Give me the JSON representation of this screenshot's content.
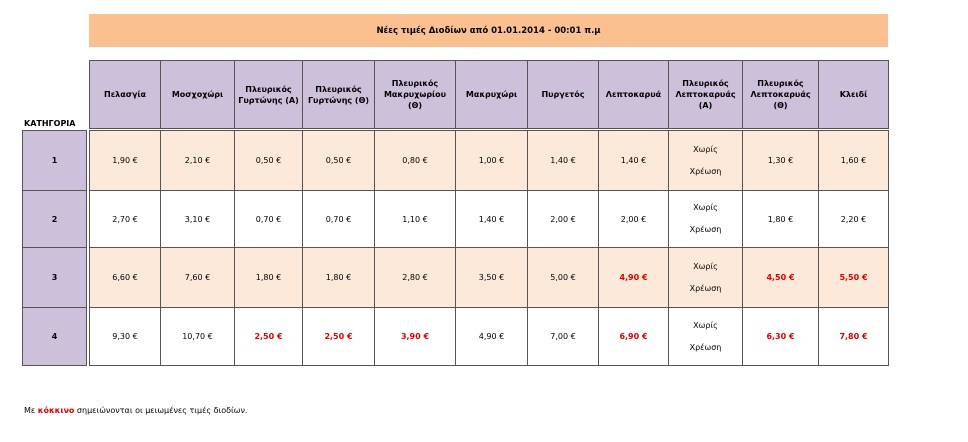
{
  "header": {
    "title": "Νέες τιμές Διοδίων από  01.01.2014 - 00:01 π.μ"
  },
  "highlight_color": "#e00000",
  "table": {
    "row_header_label": "ΚΑΤΗΓΟΡΙΑ",
    "columns": [
      "Πελασγία",
      "Μοσχοχώρι",
      "Πλευρικός Γυρτώνης (Α)",
      "Πλευρικός Γυρτώνης (Θ)",
      "Πλευρικός Μακρυχωρίου (Θ)",
      "Μακρυχώρι",
      "Πυργετός",
      "Λεπτοκαρυά",
      "Πλευρικός Λεπτοκαρυάς (Α)",
      "Πλευρικός Λεπτοκαρυάς (Θ)",
      "Κλειδί"
    ],
    "rows": [
      {
        "category": "1",
        "cells": [
          "1,90 €",
          "2,10 €",
          "0,50 €",
          "0,50 €",
          "0,80 €",
          "1,00 €",
          "1,40 €",
          "1,40 €",
          {
            "lines": [
              "Χωρίς",
              "Χρέωση"
            ]
          },
          "1,30 €",
          "1,60 €"
        ]
      },
      {
        "category": "2",
        "cells": [
          "2,70 €",
          "3,10 €",
          "0,70 €",
          "0,70 €",
          "1,10 €",
          "1,40 €",
          "2,00 €",
          "2,00 €",
          {
            "lines": [
              "Χωρίς",
              "Χρέωση"
            ]
          },
          "1,80 €",
          "2,20 €"
        ]
      },
      {
        "category": "3",
        "cells": [
          "6,60 €",
          "7,60 €",
          "1,80 €",
          "1,80 €",
          "2,80 €",
          "3,50 €",
          "5,00 €",
          {
            "text": "4,90 €",
            "reduced": true
          },
          {
            "lines": [
              "Χωρίς",
              "Χρέωση"
            ]
          },
          {
            "text": "4,50 €",
            "reduced": true
          },
          {
            "text": "5,50 €",
            "reduced": true
          }
        ]
      },
      {
        "category": "4",
        "cells": [
          "9,30 €",
          "10,70 €",
          {
            "text": "2,50 €",
            "reduced": true
          },
          {
            "text": "2,50 €",
            "reduced": true
          },
          {
            "text": "3,90 €",
            "reduced": true
          },
          "4,90 €",
          "7,00 €",
          {
            "text": "6,90 €",
            "reduced": true
          },
          {
            "lines": [
              "Χωρίς",
              "Χρέωση"
            ]
          },
          {
            "text": "6,30 €",
            "reduced": true
          },
          {
            "text": "7,80 €",
            "reduced": true
          }
        ]
      }
    ]
  },
  "note": {
    "before": "Με ",
    "highlight": "κόκκινο",
    "after": " σημειώνονται οι μειωμένες τιμές διοδίων."
  }
}
